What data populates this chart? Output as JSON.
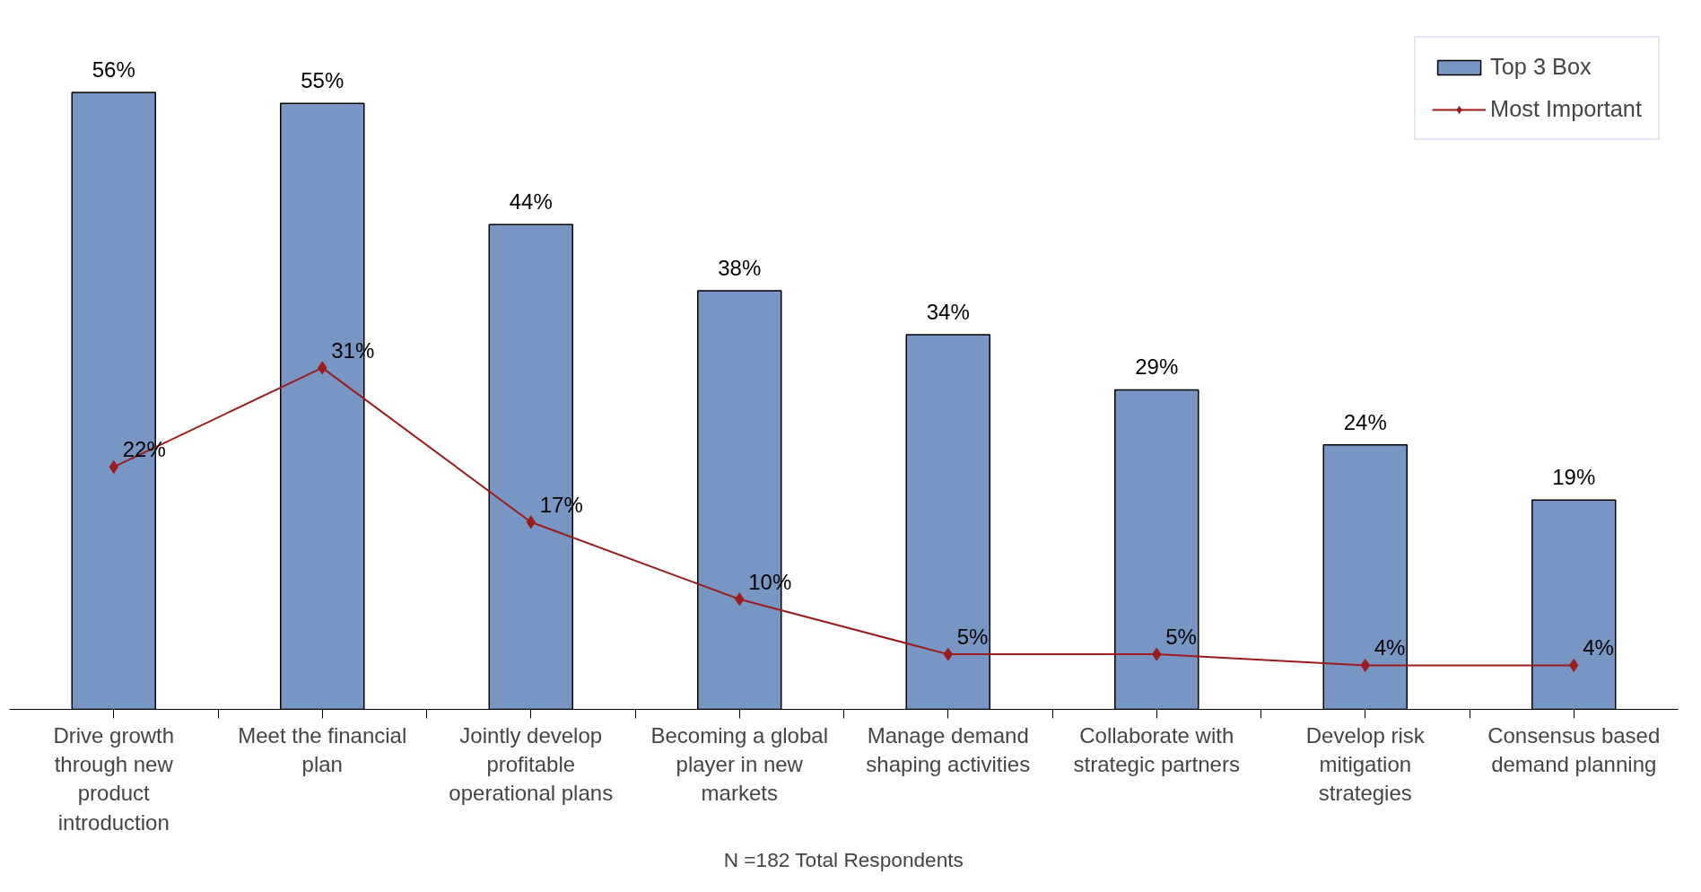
{
  "chart_data": {
    "type": "bar",
    "categories": [
      "Drive growth through new product introduction",
      "Meet the financial plan",
      "Jointly develop profitable operational plans",
      "Becoming a global player in new markets",
      "Manage demand shaping activities",
      "Collaborate with strategic partners",
      "Develop risk mitigation strategies",
      "Consensus based demand planning"
    ],
    "series": [
      {
        "name": "Top 3 Box",
        "color": "#7896c4",
        "values": [
          56,
          55,
          44,
          38,
          34,
          29,
          24,
          19
        ],
        "value_labels": [
          "56%",
          "55%",
          "44%",
          "38%",
          "34%",
          "29%",
          "24%",
          "19%"
        ]
      },
      {
        "name": "Most Important",
        "type": "line",
        "color": "#9b1c1c",
        "marker": "diamond",
        "values": [
          22,
          31,
          17,
          10,
          5,
          5,
          4,
          4
        ],
        "value_labels": [
          "22%",
          "31%",
          "17%",
          "10%",
          "5%",
          "5%",
          "4%",
          "4%"
        ]
      }
    ],
    "annotations": [
      "N =182 Total Respondents"
    ],
    "legend": "top right",
    "grid": false,
    "tick_labels": "x"
  }
}
